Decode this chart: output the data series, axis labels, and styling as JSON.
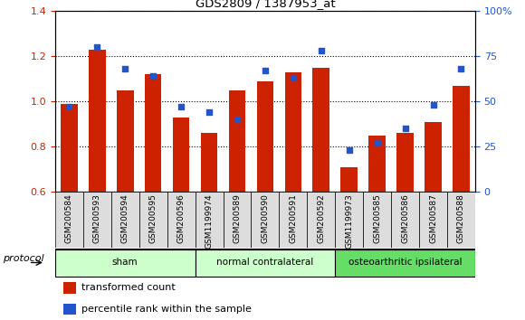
{
  "title": "GDS2809 / 1387953_at",
  "samples": [
    "GSM200584",
    "GSM200593",
    "GSM200594",
    "GSM200595",
    "GSM200596",
    "GSM1199974",
    "GSM200589",
    "GSM200590",
    "GSM200591",
    "GSM200592",
    "GSM1199973",
    "GSM200585",
    "GSM200586",
    "GSM200587",
    "GSM200588"
  ],
  "transformed_count": [
    0.99,
    1.23,
    1.05,
    1.12,
    0.93,
    0.86,
    1.05,
    1.09,
    1.13,
    1.15,
    0.71,
    0.85,
    0.86,
    0.91,
    1.07
  ],
  "percentile_rank": [
    47,
    80,
    68,
    64,
    47,
    44,
    40,
    67,
    63,
    78,
    23,
    27,
    35,
    48,
    68
  ],
  "bar_color": "#cc2200",
  "dot_color": "#2255cc",
  "ylim_left": [
    0.6,
    1.4
  ],
  "ylim_right": [
    0,
    100
  ],
  "yticks_left": [
    0.6,
    0.8,
    1.0,
    1.2,
    1.4
  ],
  "yticks_right": [
    0,
    25,
    50,
    75,
    100
  ],
  "ytick_labels_right": [
    "0",
    "25",
    "50",
    "75",
    "100%"
  ],
  "groups": [
    {
      "label": "sham",
      "start": 0,
      "end": 5,
      "color": "#ccffcc"
    },
    {
      "label": "normal contralateral",
      "start": 5,
      "end": 10,
      "color": "#ccffcc"
    },
    {
      "label": "osteoarthritic ipsilateral",
      "start": 10,
      "end": 15,
      "color": "#66dd66"
    }
  ],
  "group_dividers": [
    5,
    10
  ],
  "background_color": "#ffffff",
  "plot_bg_color": "#ffffff",
  "legend_items": [
    {
      "label": "transformed count",
      "color": "#cc2200"
    },
    {
      "label": "percentile rank within the sample",
      "color": "#2255cc"
    }
  ],
  "protocol_label": "protocol"
}
